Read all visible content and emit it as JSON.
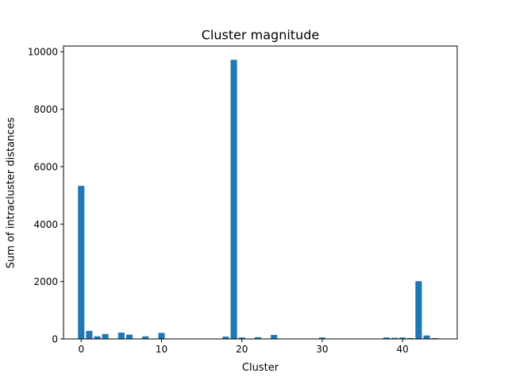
{
  "chart_data": {
    "type": "bar",
    "title": "Cluster magnitude",
    "xlabel": "Cluster",
    "ylabel": "Sum of intracluster distances",
    "xlim": [
      -2.2,
      46.8
    ],
    "ylim": [
      0,
      10200
    ],
    "xticks": [
      0,
      10,
      20,
      30,
      40
    ],
    "yticks": [
      0,
      2000,
      4000,
      6000,
      8000,
      10000
    ],
    "bar_color": "#1f77b4",
    "grid": false,
    "legend": "none",
    "x": [
      0,
      1,
      2,
      3,
      5,
      6,
      8,
      10,
      18,
      19,
      20,
      22,
      24,
      30,
      38,
      39,
      40,
      41,
      42,
      43,
      44
    ],
    "values": [
      5330,
      280,
      90,
      170,
      220,
      150,
      90,
      210,
      80,
      9720,
      50,
      60,
      140,
      50,
      50,
      40,
      50,
      30,
      2010,
      120,
      30
    ]
  }
}
